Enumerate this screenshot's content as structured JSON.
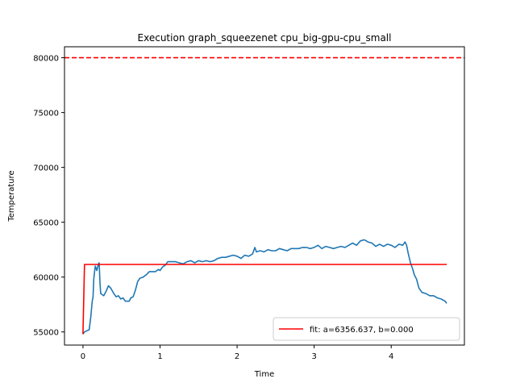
{
  "chart_data": {
    "type": "line",
    "title": "Execution graph_squeezenet cpu_big-gpu-cpu_small",
    "xlabel": "Time",
    "ylabel": "Temperature",
    "xlim": [
      -0.24,
      4.95
    ],
    "ylim": [
      53800,
      81000
    ],
    "xticks": [
      0,
      1,
      2,
      3,
      4
    ],
    "yticks": [
      55000,
      60000,
      65000,
      70000,
      75000,
      80000
    ],
    "threshold": {
      "value": 80000,
      "color": "#ff0000",
      "style": "dashed"
    },
    "legend_position": "lower right",
    "series": [
      {
        "kind": "measured",
        "color": "#1f77b4",
        "x": [
          0.0,
          0.02,
          0.05,
          0.08,
          0.1,
          0.12,
          0.13,
          0.14,
          0.15,
          0.16,
          0.18,
          0.2,
          0.21,
          0.22,
          0.23,
          0.25,
          0.27,
          0.3,
          0.33,
          0.36,
          0.4,
          0.43,
          0.46,
          0.49,
          0.52,
          0.55,
          0.57,
          0.6,
          0.62,
          0.65,
          0.68,
          0.71,
          0.74,
          0.78,
          0.82,
          0.86,
          0.9,
          0.94,
          0.98,
          1.0,
          1.03,
          1.07,
          1.1,
          1.15,
          1.2,
          1.25,
          1.3,
          1.35,
          1.4,
          1.45,
          1.5,
          1.55,
          1.6,
          1.65,
          1.7,
          1.75,
          1.8,
          1.85,
          1.9,
          1.95,
          2.0,
          2.05,
          2.1,
          2.15,
          2.2,
          2.23,
          2.25,
          2.3,
          2.35,
          2.4,
          2.45,
          2.5,
          2.55,
          2.6,
          2.65,
          2.7,
          2.75,
          2.8,
          2.85,
          2.9,
          2.95,
          3.0,
          3.05,
          3.1,
          3.15,
          3.2,
          3.25,
          3.3,
          3.35,
          3.4,
          3.45,
          3.5,
          3.55,
          3.6,
          3.65,
          3.7,
          3.75,
          3.8,
          3.85,
          3.9,
          3.95,
          4.0,
          4.05,
          4.1,
          4.15,
          4.18,
          4.2,
          4.22,
          4.25,
          4.28,
          4.3,
          4.33,
          4.36,
          4.4,
          4.45,
          4.5,
          4.55,
          4.6,
          4.65,
          4.7,
          4.72
        ],
        "y": [
          54800,
          55000,
          55100,
          55200,
          56300,
          57800,
          58200,
          59800,
          60500,
          61000,
          60600,
          61200,
          61300,
          59500,
          58500,
          58400,
          58300,
          58700,
          59200,
          59000,
          58500,
          58200,
          58300,
          58000,
          58100,
          57800,
          57800,
          57800,
          58100,
          58200,
          58800,
          59600,
          59900,
          60000,
          60200,
          60500,
          60500,
          60500,
          60700,
          60600,
          60900,
          61100,
          61400,
          61400,
          61400,
          61300,
          61200,
          61400,
          61500,
          61300,
          61500,
          61400,
          61500,
          61400,
          61500,
          61700,
          61800,
          61800,
          61900,
          62000,
          61900,
          61700,
          62000,
          61900,
          62100,
          62700,
          62300,
          62400,
          62300,
          62500,
          62400,
          62400,
          62600,
          62500,
          62400,
          62600,
          62600,
          62600,
          62700,
          62700,
          62600,
          62700,
          62900,
          62600,
          62800,
          62700,
          62600,
          62700,
          62800,
          62700,
          62900,
          63100,
          62900,
          63300,
          63400,
          63200,
          63100,
          62800,
          63000,
          62800,
          63000,
          62900,
          62700,
          63000,
          62900,
          63200,
          62900,
          62200,
          61300,
          60700,
          60200,
          59800,
          59000,
          58600,
          58500,
          58300,
          58300,
          58100,
          58000,
          57800,
          57600
        ]
      },
      {
        "kind": "fit",
        "name": "fit: a=6356.637, b=0.000",
        "color": "#ff0000",
        "x": [
          0.0,
          0.02,
          4.72
        ],
        "y": [
          54800,
          61150,
          61150
        ]
      }
    ]
  }
}
